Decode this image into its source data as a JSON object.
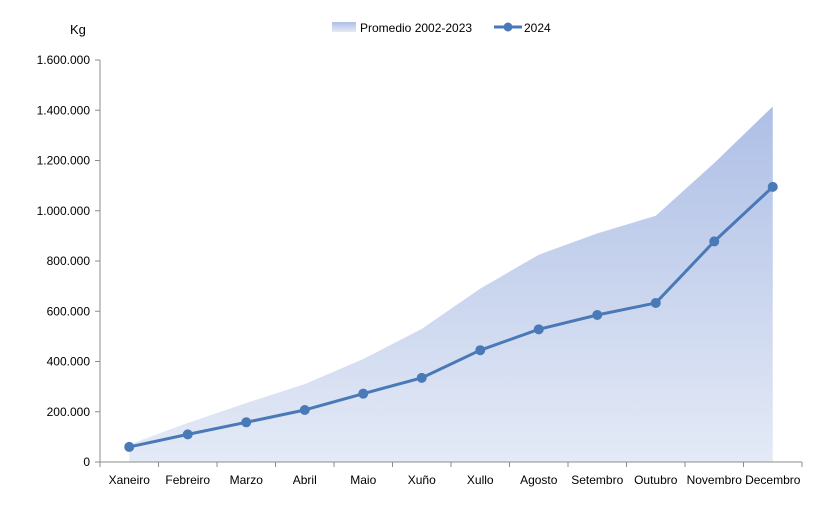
{
  "chart_data": {
    "type": "area",
    "ylabel": "Kg",
    "ylim": [
      0,
      1600000
    ],
    "yticks": [
      0,
      200000,
      400000,
      600000,
      800000,
      1000000,
      1200000,
      1400000,
      1600000
    ],
    "ytick_labels": [
      "0",
      "200.000",
      "400.000",
      "600.000",
      "800.000",
      "1.000.000",
      "1.200.000",
      "1.400.000",
      "1.600.000"
    ],
    "categories": [
      "Xaneiro",
      "Febreiro",
      "Marzo",
      "Abril",
      "Maio",
      "Xuño",
      "Xullo",
      "Agosto",
      "Setembro",
      "Outubro",
      "Novembro",
      "Decembro"
    ],
    "legend_position": "top-center",
    "grid": false,
    "series": [
      {
        "name": "Promedio 2002-2023",
        "kind": "area",
        "color_top": "#aebfe6",
        "color_bottom": "#e4eaf6",
        "values": [
          70000,
          155000,
          235000,
          310000,
          410000,
          530000,
          690000,
          825000,
          910000,
          980000,
          1190000,
          1415000
        ]
      },
      {
        "name": "2024",
        "kind": "line",
        "color": "#4a79b8",
        "values": [
          60000,
          110000,
          158000,
          207000,
          272000,
          335000,
          445000,
          528000,
          585000,
          633000,
          878000,
          1095000
        ]
      }
    ]
  }
}
